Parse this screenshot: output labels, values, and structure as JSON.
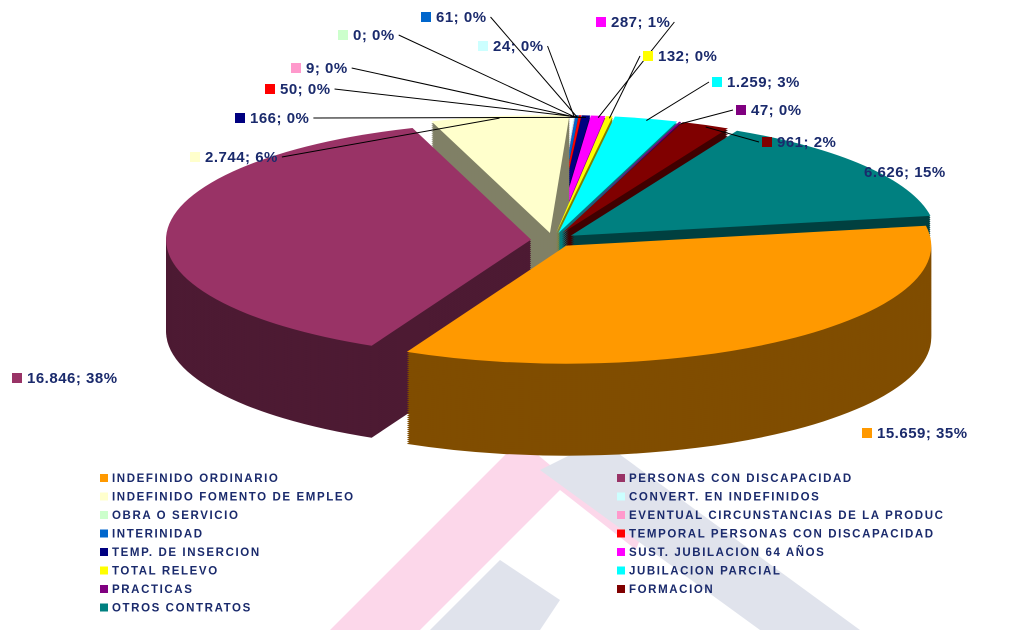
{
  "chart_data": {
    "type": "pie3d",
    "series": [
      {
        "name": "INDEFINIDO ORDINARIO",
        "color": "#FF9900",
        "values": [
          15659
        ],
        "value_labels": [
          "15.659; 35%"
        ]
      },
      {
        "name": "PERSONAS CON DISCAPACIDAD",
        "color": "#993366",
        "values": [
          16846
        ],
        "value_labels": [
          "16.846; 38%"
        ]
      },
      {
        "name": "INDEFINIDO FOMENTO DE EMPLEO",
        "color": "#FFFFCC",
        "values": [
          2744
        ],
        "value_labels": [
          "2.744; 6%"
        ]
      },
      {
        "name": "CONVERT. EN INDEFINIDOS",
        "color": "#CCFFFF",
        "values": [
          24
        ],
        "value_labels": [
          "24; 0%"
        ]
      },
      {
        "name": "OBRA O SERVICIO",
        "color": "#CCFFCC",
        "values": [
          0
        ],
        "value_labels": [
          "0; 0%"
        ]
      },
      {
        "name": "EVENTUAL CIRCUNSTANCIAS DE LA PRODUC",
        "color": "#FF99CC",
        "values": [
          9
        ],
        "value_labels": [
          "9; 0%"
        ]
      },
      {
        "name": "INTERINIDAD",
        "color": "#0066CC",
        "values": [
          61
        ],
        "value_labels": [
          "61; 0%"
        ]
      },
      {
        "name": "TEMPORAL PERSONAS CON DISCAPACIDAD",
        "color": "#FF0000",
        "values": [
          50
        ],
        "value_labels": [
          "50; 0%"
        ]
      },
      {
        "name": "TEMP. DE INSERCION",
        "color": "#000080",
        "values": [
          166
        ],
        "value_labels": [
          "166; 0%"
        ]
      },
      {
        "name": "SUST. JUBILACION 64 AÑOS",
        "color": "#FF00FF",
        "values": [
          287
        ],
        "value_labels": [
          "287; 1%"
        ]
      },
      {
        "name": "TOTAL RELEVO",
        "color": "#FFFF00",
        "values": [
          132
        ],
        "value_labels": [
          "132; 0%"
        ]
      },
      {
        "name": "JUBILACION PARCIAL",
        "color": "#00FFFF",
        "values": [
          1259
        ],
        "value_labels": [
          "1.259; 3%"
        ]
      },
      {
        "name": "PRACTICAS",
        "color": "#800080",
        "values": [
          47
        ],
        "value_labels": [
          "47; 0%"
        ]
      },
      {
        "name": "FORMACION",
        "color": "#800000",
        "values": [
          961
        ],
        "value_labels": [
          "961; 2%"
        ]
      },
      {
        "name": "OTROS CONTRATOS",
        "color": "#008080",
        "values": [
          6626
        ],
        "value_labels": [
          "6.626; 15%"
        ]
      }
    ]
  }
}
